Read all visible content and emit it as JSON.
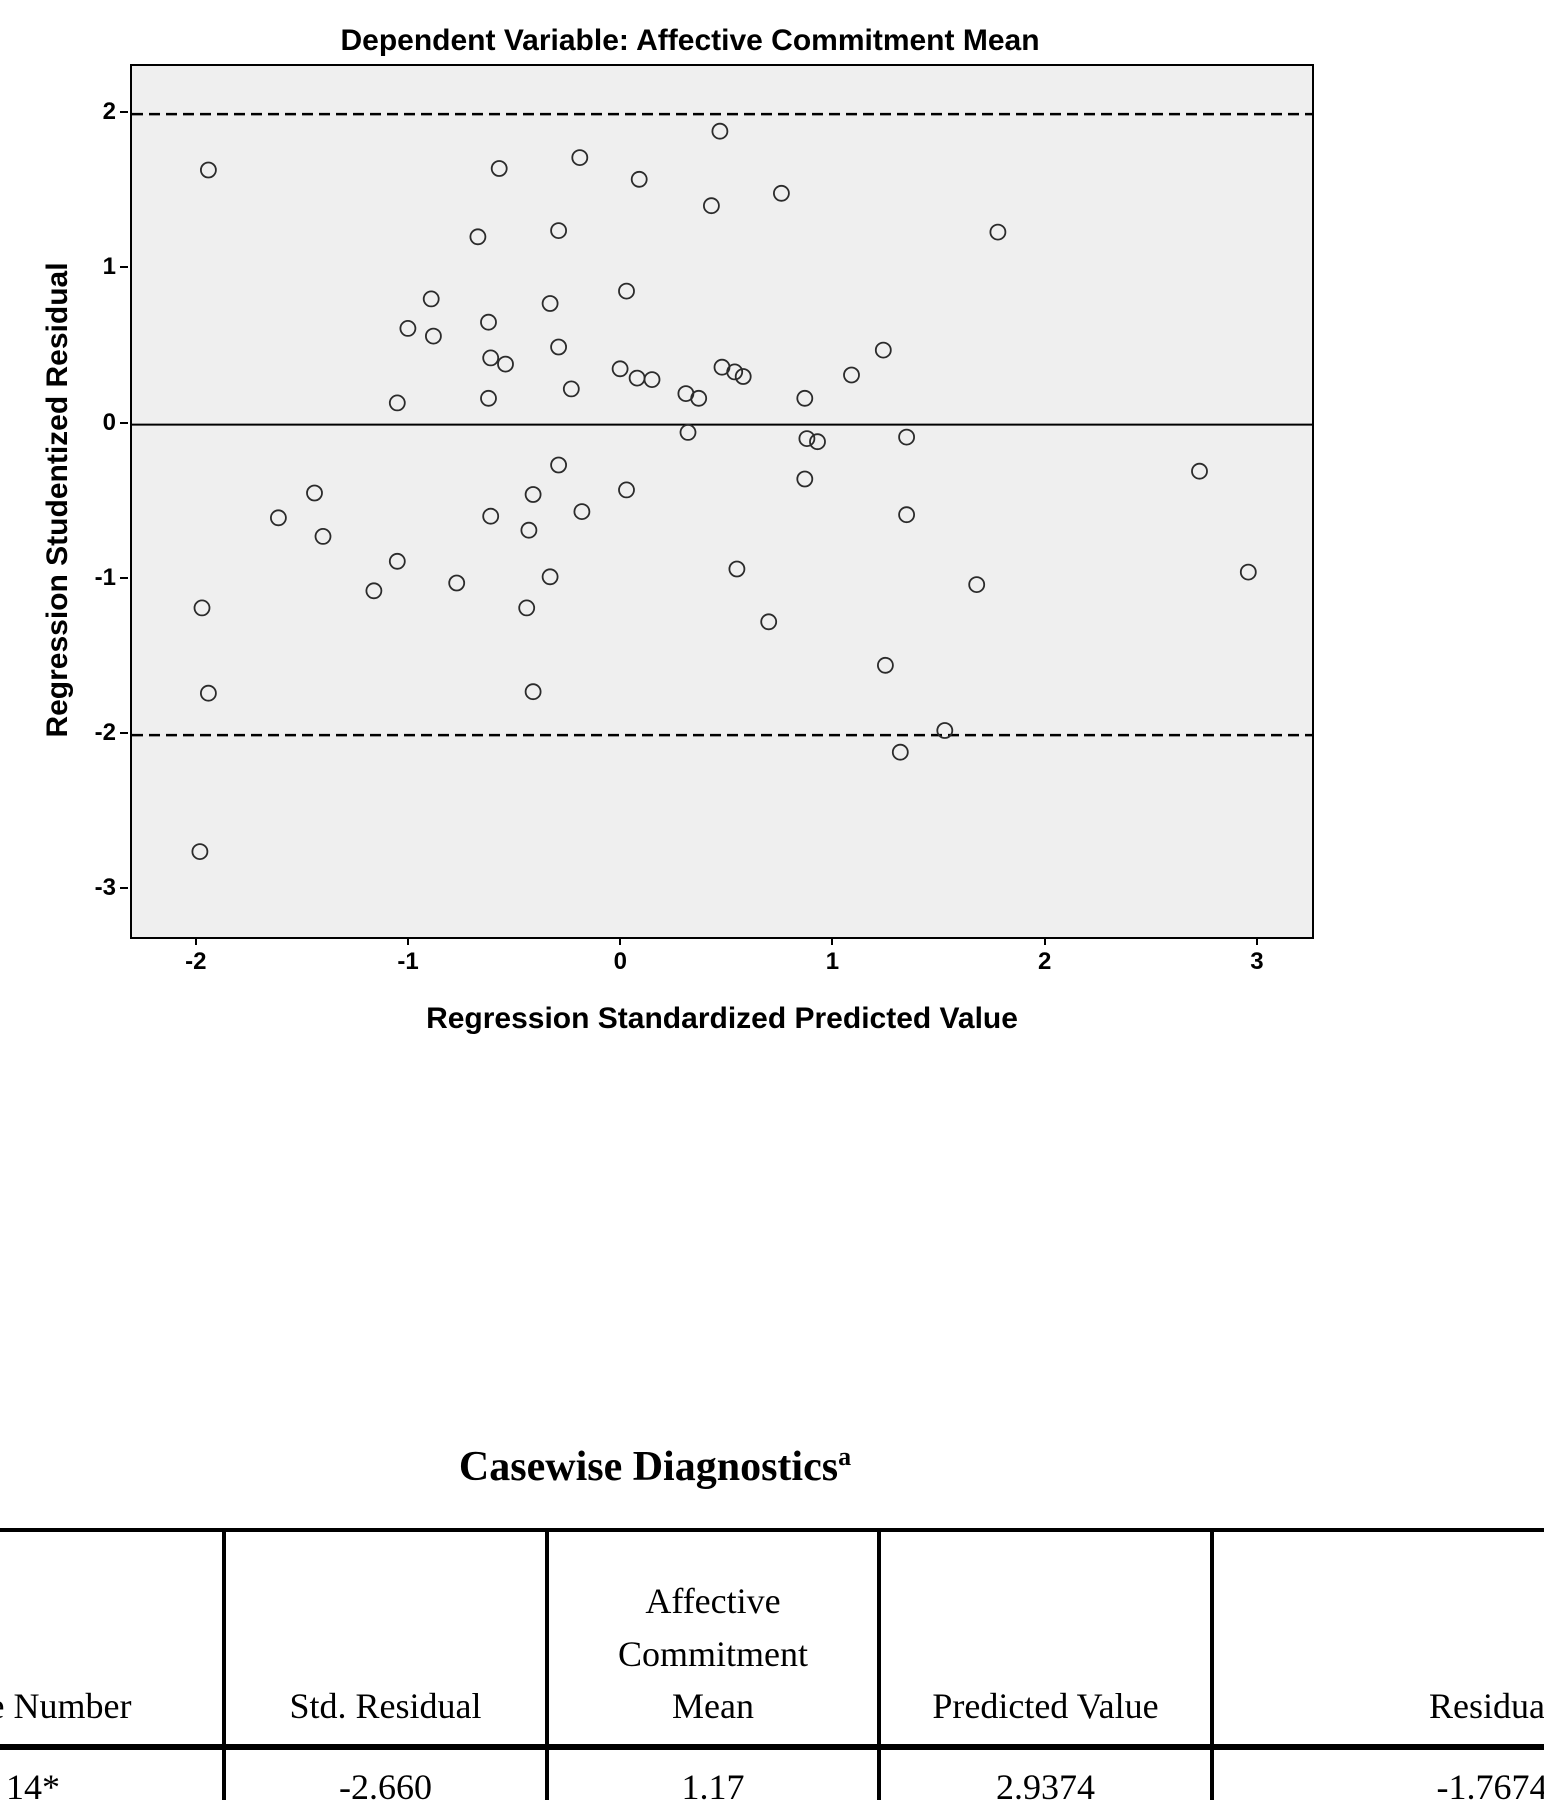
{
  "chart_data": {
    "type": "scatter",
    "title": "Dependent Variable: Affective Commitment Mean",
    "xlabel": "Regression Standardized Predicted Value",
    "ylabel": "Regression Studentized Residual",
    "xlim": [
      -2.31,
      3.25
    ],
    "ylim": [
      -3.3,
      2.31
    ],
    "xticks": [
      -2,
      -1,
      0,
      1,
      2,
      3
    ],
    "yticks": [
      2,
      1,
      0,
      -1,
      -2,
      -3
    ],
    "reference_lines": [
      {
        "y": 2,
        "style": "dashed"
      },
      {
        "y": 0,
        "style": "solid"
      },
      {
        "y": -2,
        "style": "dashed"
      }
    ],
    "marker": "open-circle",
    "plot_background": "#efefef",
    "marker_color": "#2b2b2b",
    "points": [
      [
        -1.95,
        1.64
      ],
      [
        -0.58,
        1.65
      ],
      [
        -0.2,
        1.72
      ],
      [
        0.46,
        1.89
      ],
      [
        0.08,
        1.58
      ],
      [
        0.42,
        1.41
      ],
      [
        0.75,
        1.49
      ],
      [
        1.77,
        1.24
      ],
      [
        -0.68,
        1.21
      ],
      [
        -0.3,
        1.25
      ],
      [
        0.02,
        0.86
      ],
      [
        -0.9,
        0.81
      ],
      [
        -0.34,
        0.78
      ],
      [
        -1.01,
        0.62
      ],
      [
        -0.89,
        0.57
      ],
      [
        -0.63,
        0.66
      ],
      [
        -0.62,
        0.43
      ],
      [
        -0.55,
        0.39
      ],
      [
        -0.3,
        0.5
      ],
      [
        -0.01,
        0.36
      ],
      [
        0.07,
        0.3
      ],
      [
        0.14,
        0.29
      ],
      [
        -0.24,
        0.23
      ],
      [
        0.3,
        0.2
      ],
      [
        0.36,
        0.17
      ],
      [
        0.47,
        0.37
      ],
      [
        0.53,
        0.34
      ],
      [
        0.57,
        0.31
      ],
      [
        0.86,
        0.17
      ],
      [
        1.08,
        0.32
      ],
      [
        1.23,
        0.48
      ],
      [
        -1.06,
        0.14
      ],
      [
        -0.63,
        0.17
      ],
      [
        0.31,
        -0.05
      ],
      [
        0.87,
        -0.09
      ],
      [
        0.92,
        -0.11
      ],
      [
        1.34,
        -0.08
      ],
      [
        -0.3,
        -0.26
      ],
      [
        0.86,
        -0.35
      ],
      [
        2.72,
        -0.3
      ],
      [
        -1.45,
        -0.44
      ],
      [
        -0.42,
        -0.45
      ],
      [
        0.02,
        -0.42
      ],
      [
        -1.62,
        -0.6
      ],
      [
        -0.62,
        -0.59
      ],
      [
        -0.19,
        -0.56
      ],
      [
        1.34,
        -0.58
      ],
      [
        -1.41,
        -0.72
      ],
      [
        -0.44,
        -0.68
      ],
      [
        -1.06,
        -0.88
      ],
      [
        0.54,
        -0.93
      ],
      [
        -0.34,
        -0.98
      ],
      [
        -0.78,
        -1.02
      ],
      [
        -1.17,
        -1.07
      ],
      [
        1.67,
        -1.03
      ],
      [
        2.95,
        -0.95
      ],
      [
        -0.45,
        -1.18
      ],
      [
        -1.98,
        -1.18
      ],
      [
        0.69,
        -1.27
      ],
      [
        1.24,
        -1.55
      ],
      [
        -0.42,
        -1.72
      ],
      [
        -1.95,
        -1.73
      ],
      [
        1.52,
        -1.97
      ],
      [
        1.31,
        -2.11
      ],
      [
        -1.99,
        -2.75
      ]
    ]
  },
  "table": {
    "title": "Casewise Diagnostics",
    "title_superscript": "a",
    "columns": [
      "Case Number",
      "Std. Residual",
      "Affective Commitment Mean",
      "Predicted Value",
      "Residual"
    ],
    "rows": [
      [
        "14*",
        "-2.660",
        "1.17",
        "2.9374",
        "-1.7674"
      ]
    ]
  }
}
